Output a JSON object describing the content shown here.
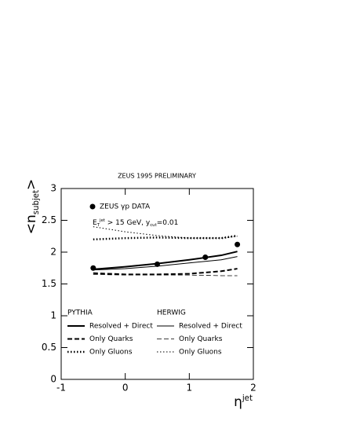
{
  "chart_data": {
    "type": "line",
    "title": "ZEUS 1995 PRELIMINARY",
    "ylabel": [
      {
        "text": "<"
      },
      {
        "text": "n"
      },
      {
        "text": "subjet",
        "shift": "sub"
      },
      {
        "text": ">"
      }
    ],
    "xlabel": [
      {
        "text": "η"
      },
      {
        "text": "jet",
        "shift": "sup"
      }
    ],
    "annotation": [
      {
        "text": "E"
      },
      {
        "text": "T",
        "shift": "sub"
      },
      {
        "text": "jet",
        "shift": "sup"
      },
      {
        "text": " > 15 GeV, y"
      },
      {
        "text": "cut",
        "shift": "sub"
      },
      {
        "text": "=0.01"
      }
    ],
    "xlim": [
      -1,
      2
    ],
    "xticks": [
      -1,
      0,
      1,
      2
    ],
    "ylim": [
      0,
      3
    ],
    "yticks": [
      0,
      0.5,
      1,
      1.5,
      2,
      2.5,
      3
    ],
    "points": {
      "name": "ZEUS γp DATA",
      "color": "#000000",
      "x": [
        -0.5,
        0.5,
        1.25,
        1.75
      ],
      "values": [
        1.75,
        1.81,
        1.92,
        2.12
      ]
    },
    "x": [
      -0.5,
      0,
      0.5,
      1,
      1.5,
      1.75
    ],
    "series": [
      {
        "name": "Resolved + Direct",
        "group": "PYTHIA",
        "color": "#000000",
        "width": 2,
        "dash": "solid",
        "values": [
          1.73,
          1.77,
          1.82,
          1.88,
          1.95,
          2.01
        ]
      },
      {
        "name": "Only Quarks",
        "group": "PYTHIA",
        "color": "#000000",
        "width": 2,
        "dash": "dashed",
        "values": [
          1.67,
          1.65,
          1.65,
          1.66,
          1.7,
          1.74
        ]
      },
      {
        "name": "Only Gluons",
        "group": "PYTHIA",
        "color": "#000000",
        "width": 2.5,
        "dash": "dotted",
        "values": [
          2.2,
          2.22,
          2.23,
          2.22,
          2.22,
          2.26
        ]
      },
      {
        "name": "Resolved + Direct",
        "group": "HERWIG",
        "color": "#000000",
        "width": 1,
        "dash": "solid",
        "values": [
          1.72,
          1.74,
          1.78,
          1.83,
          1.88,
          1.93
        ]
      },
      {
        "name": "Only Quarks",
        "group": "HERWIG",
        "color": "#000000",
        "width": 0.8,
        "dash": "dashed",
        "values": [
          1.65,
          1.64,
          1.64,
          1.64,
          1.63,
          1.63
        ]
      },
      {
        "name": "Only Gluons",
        "group": "HERWIG",
        "color": "#000000",
        "width": 1,
        "dash": "dotted",
        "values": [
          2.4,
          2.32,
          2.26,
          2.22,
          2.22,
          2.25
        ]
      }
    ]
  }
}
